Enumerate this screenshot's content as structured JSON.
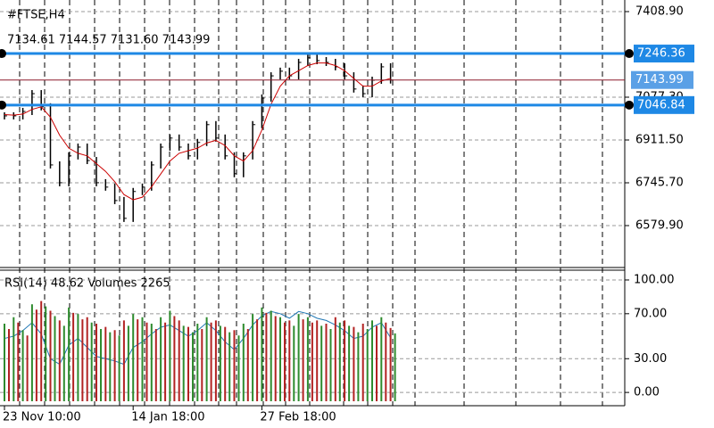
{
  "chart_data": [
    {
      "type": "price",
      "title": "#FTSE,H4",
      "subtitle": "7134.61 7144.57 7131.60 7143.99",
      "values": [
        7005,
        7005,
        7022,
        7091,
        7040,
        6815,
        6746,
        6850,
        6884,
        6832,
        6746,
        6729,
        6677,
        6608,
        6712,
        6729,
        6815,
        6884,
        6919,
        6884,
        6850,
        6902,
        6971,
        6919,
        6850,
        6781,
        6850,
        6971,
        7074,
        7160,
        7178,
        7160,
        7212,
        7230,
        7219,
        7212,
        7195,
        7160,
        7109,
        7091,
        7143,
        7195,
        7143.99
      ],
      "color": "#000000",
      "ma": {
        "color": "#cc0000",
        "values": [
          7010,
          7008,
          7012,
          7030,
          7040,
          7000,
          6930,
          6880,
          6860,
          6850,
          6820,
          6790,
          6750,
          6700,
          6680,
          6690,
          6730,
          6780,
          6830,
          6860,
          6870,
          6880,
          6900,
          6910,
          6890,
          6850,
          6830,
          6870,
          6950,
          7050,
          7120,
          7160,
          7180,
          7200,
          7210,
          7210,
          7200,
          7180,
          7150,
          7120,
          7120,
          7140,
          7150
        ]
      },
      "levels": [
        7246.36,
        7046.84
      ],
      "level_color": "#1e88e5",
      "last_color": "#8b1a2b",
      "ylim": [
        6417.6,
        7453.8
      ],
      "yticks": [
        {
          "value": 7408.9,
          "label": "7408.90"
        },
        {
          "value": 7077.3,
          "label": "7077.30"
        },
        {
          "value": 6911.5,
          "label": "6911.50"
        },
        {
          "value": 6745.7,
          "label": "6745.70"
        },
        {
          "value": 6579.9,
          "label": "6579.90"
        }
      ],
      "grid": true
    },
    {
      "type": "indicator",
      "title": "RSI(14) 48.62 Volumes 2265",
      "categories": [
        "23 Nov 10:00",
        null,
        null,
        null,
        null,
        null,
        null,
        null,
        null,
        null,
        null,
        null,
        null,
        null,
        "14 Jan 18:00",
        null,
        null,
        null,
        null,
        null,
        null,
        null,
        null,
        null,
        null,
        null,
        null,
        null,
        "27 Feb 18:00",
        null,
        null,
        null,
        null,
        null,
        null,
        null,
        null,
        null,
        null,
        null,
        null,
        null,
        null
      ],
      "series": [
        {
          "name": "RSI(14)",
          "color": "#1f77b4",
          "values": [
            48,
            50,
            55,
            62,
            52,
            30,
            25,
            42,
            48,
            40,
            32,
            30,
            28,
            25,
            40,
            45,
            52,
            58,
            60,
            55,
            50,
            55,
            62,
            55,
            45,
            38,
            48,
            60,
            68,
            72,
            70,
            66,
            72,
            70,
            66,
            64,
            60,
            55,
            48,
            50,
            58,
            62,
            48.62
          ]
        },
        {
          "name": "Volumes",
          "axis": "y2",
          "color": "#2e8b2e",
          "values": [
            2400,
            2600,
            2200,
            3000,
            3100,
            2800,
            2500,
            2900,
            2700,
            2600,
            2400,
            2300,
            2200,
            2500,
            2700,
            2600,
            2400,
            2600,
            2800,
            2500,
            2300,
            2400,
            2600,
            2500,
            2300,
            2200,
            2400,
            2700,
            2900,
            2800,
            2600,
            2500,
            2700,
            2600,
            2500,
            2400,
            2600,
            2500,
            2300,
            2400,
            2500,
            2600,
            2265
          ]
        }
      ],
      "down_color": "#b22222",
      "ylim": [
        -11.8,
        108.7
      ],
      "yticks": [
        {
          "value": 100,
          "label": "100.00"
        },
        {
          "value": 70,
          "label": "70.00"
        },
        {
          "value": 30,
          "label": "30.00"
        },
        {
          "value": 0,
          "label": "0.00"
        }
      ],
      "y2lim": [
        0,
        4000
      ],
      "grid": true
    }
  ]
}
